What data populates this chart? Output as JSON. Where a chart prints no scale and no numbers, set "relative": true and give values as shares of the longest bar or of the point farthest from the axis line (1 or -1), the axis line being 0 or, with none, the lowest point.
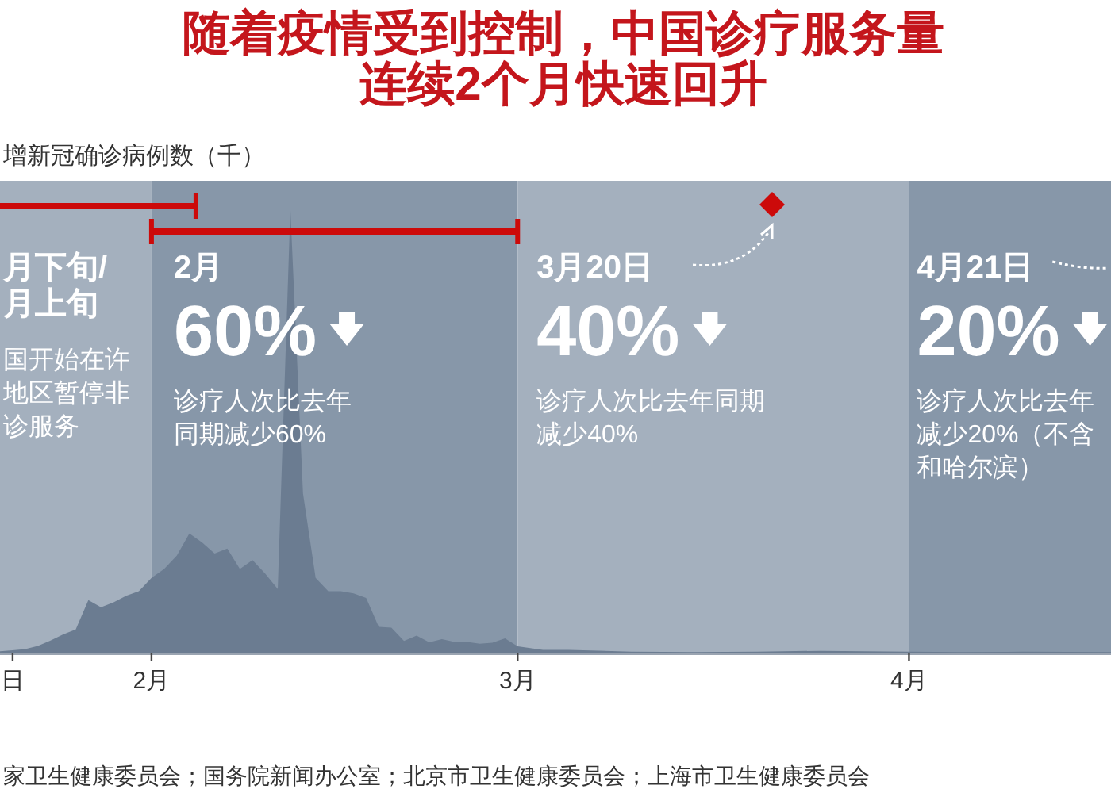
{
  "chart_data": {
    "type": "area",
    "title": "随着疫情受到控制，中国诊疗服务量连续2个月快速回升",
    "ylabel": "增新冠确诊病例数（千）",
    "relative": true,
    "x": [
      "--01-20",
      "--01-21",
      "--01-22",
      "--01-23",
      "--01-24",
      "--01-25",
      "--01-26",
      "--01-27",
      "--01-28",
      "--01-29",
      "--01-30",
      "--01-31",
      "--02-01",
      "--02-02",
      "--02-03",
      "--02-04",
      "--02-05",
      "--02-06",
      "--02-07",
      "--02-08",
      "--02-09",
      "--02-10",
      "--02-11",
      "--02-12",
      "--02-13",
      "--02-14",
      "--02-15",
      "--02-16",
      "--02-17",
      "--02-18",
      "--02-19",
      "--02-20",
      "--02-21",
      "--02-22",
      "--02-23",
      "--02-24",
      "--02-25",
      "--02-26",
      "--02-27",
      "--02-28",
      "--02-29",
      "--03-01",
      "--03-02",
      "--03-03",
      "--03-05",
      "--03-10",
      "--03-15",
      "--03-20",
      "--03-25",
      "--04-01",
      "--04-05",
      "--04-10",
      "--04-17"
    ],
    "series": [
      {
        "color": "#6b7c91",
        "values": [
          0.005,
          0.007,
          0.01,
          0.017,
          0.029,
          0.043,
          0.054,
          0.12,
          0.104,
          0.115,
          0.13,
          0.14,
          0.17,
          0.19,
          0.22,
          0.27,
          0.25,
          0.225,
          0.236,
          0.19,
          0.21,
          0.18,
          0.145,
          1,
          0.36,
          0.17,
          0.14,
          0.14,
          0.135,
          0.125,
          0.06,
          0.058,
          0.028,
          0.04,
          0.025,
          0.032,
          0.026,
          0.026,
          0.022,
          0.024,
          0.034,
          0.016,
          0.012,
          0.008,
          0.008,
          0.004,
          0.003,
          0.004,
          0.006,
          0.004,
          0.003,
          0.004,
          0.003
        ]
      }
    ],
    "xlim": [
      "--01-20",
      "--04-17"
    ],
    "xticks": [
      {
        "value": "--01-21",
        "label": "日"
      },
      {
        "value": "--02-01",
        "label": "2月"
      },
      {
        "value": "--03-01",
        "label": "3月"
      },
      {
        "value": "--04-01",
        "label": "4月"
      }
    ],
    "bands": [
      {
        "axis": "x",
        "from": "--01-20",
        "to": "--02-01",
        "label": "月下旬/月上旬",
        "color": "#a4b0be"
      },
      {
        "axis": "x",
        "from": "--02-01",
        "to": "--03-01",
        "label": "2月",
        "color": "#8797a9"
      },
      {
        "axis": "x",
        "from": "--03-01",
        "to": "--04-01",
        "label": "3月20日",
        "color": "#a4b0be"
      },
      {
        "axis": "x",
        "from": "--04-01",
        "to": "--04-17",
        "label": "4月21日",
        "color": "#8797a9"
      }
    ],
    "annotations": [
      "国开始在许地区暂停非诊服务",
      "60%",
      "诊疗人次比去年同期减少60%",
      "40%",
      "诊疗人次比去年同期减少40%",
      "20%",
      "诊疗人次比去年减少20%（不含和哈尔滨）",
      "家卫生健康委员会；国务院新闻办公室；北京市卫生健康委员会；上海市卫生健康委员会"
    ]
  }
}
